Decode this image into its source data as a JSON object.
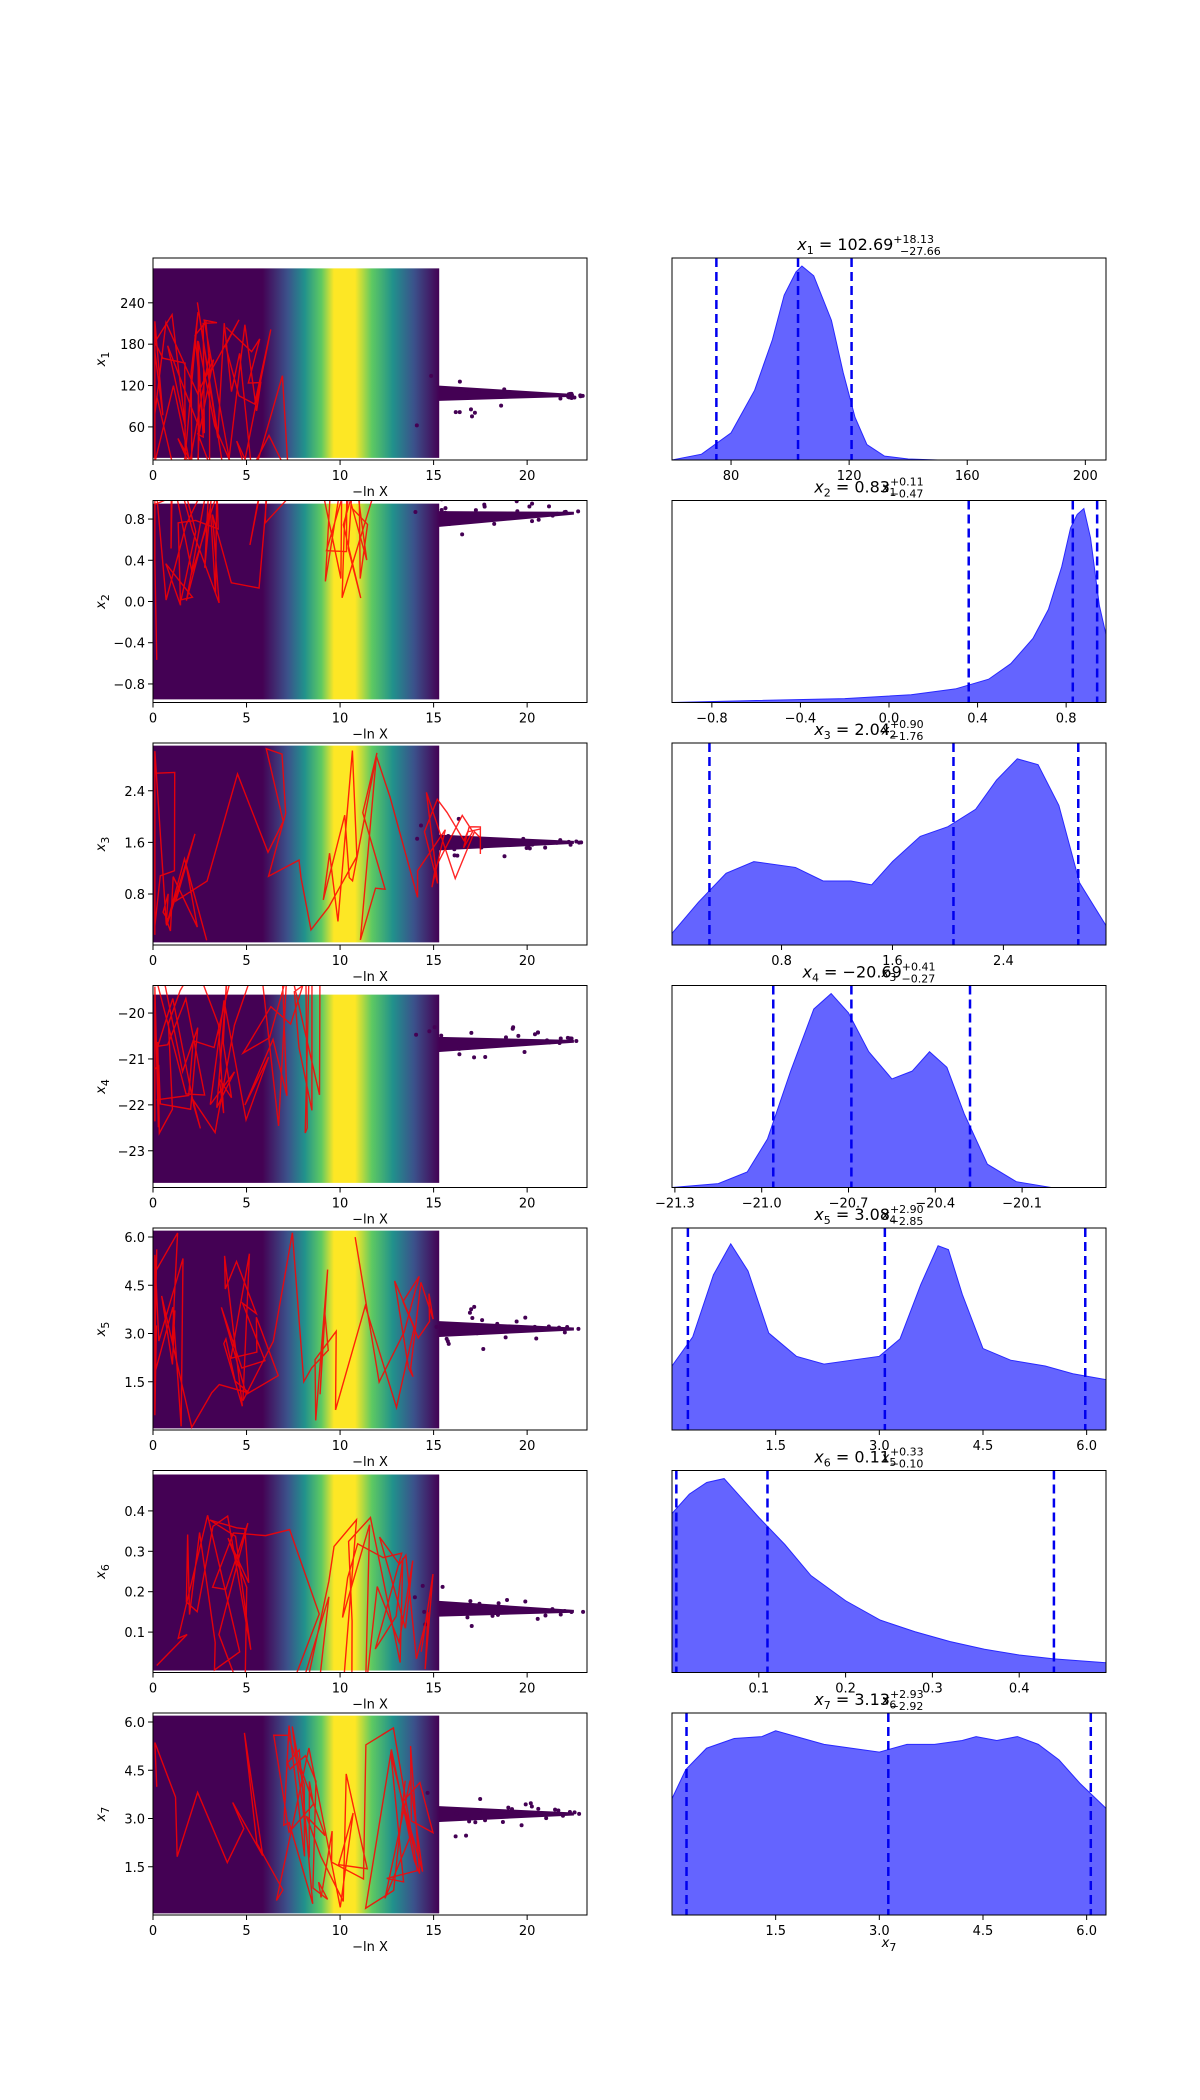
{
  "colors": {
    "posterior_fill": "#6464ff",
    "posterior_edge": "#2828ff",
    "quantile_line": "#0000ee",
    "trace_line": "#ff0000",
    "viridis": [
      "#440154",
      "#3b528b",
      "#21918c",
      "#5ec962",
      "#fde725"
    ]
  },
  "chart_data": {
    "type": "trace_plot",
    "trace_xlabel": "−ln X",
    "trace_xlim": [
      0,
      23.2
    ],
    "trace_xticks": [
      "0",
      "5",
      "10",
      "15",
      "20"
    ],
    "parameters": [
      {
        "label": "x",
        "index": "1",
        "title_value": "102.69",
        "err_plus": "+18.13",
        "err_minus": "−27.66",
        "trace_ylim": [
          12,
          305
        ],
        "trace_yticks": [
          "60",
          "120",
          "180",
          "240"
        ],
        "trace_core": 105,
        "trace_spread_low": 15,
        "trace_spread_high": 290,
        "posterior_xlim": [
          60,
          207
        ],
        "posterior_xticks": [
          "80",
          "120",
          "160",
          "200"
        ],
        "quantiles": [
          75.03,
          102.69,
          120.82
        ],
        "density_x": [
          60,
          70,
          80,
          88,
          94,
          98,
          102,
          104,
          108,
          114,
          118,
          122,
          126,
          132,
          140,
          150,
          207
        ],
        "density_y": [
          0.0,
          0.03,
          0.14,
          0.36,
          0.62,
          0.85,
          0.97,
          1.0,
          0.95,
          0.72,
          0.45,
          0.22,
          0.08,
          0.02,
          0.005,
          0.0,
          0.0
        ]
      },
      {
        "label": "x",
        "index": "2",
        "title_value": "0.83",
        "err_plus": "+0.11",
        "err_minus": "−0.47",
        "trace_ylim": [
          -0.98,
          0.98
        ],
        "trace_yticks": [
          "−0.8",
          "−0.4",
          "0.0",
          "0.4",
          "0.8"
        ],
        "trace_core": 0.87,
        "trace_spread_low": -0.95,
        "trace_spread_high": 0.95,
        "posterior_xlim": [
          -0.98,
          0.98
        ],
        "posterior_xticks": [
          "−0.8",
          "−0.4",
          "0.0",
          "0.4",
          "0.8"
        ],
        "quantiles": [
          0.36,
          0.83,
          0.94
        ],
        "density_x": [
          -0.98,
          -0.6,
          -0.2,
          0.1,
          0.3,
          0.45,
          0.55,
          0.65,
          0.72,
          0.78,
          0.82,
          0.85,
          0.88,
          0.91,
          0.95,
          0.98
        ],
        "density_y": [
          0.0,
          0.01,
          0.02,
          0.04,
          0.07,
          0.12,
          0.2,
          0.33,
          0.48,
          0.7,
          0.9,
          0.97,
          1.0,
          0.85,
          0.5,
          0.35
        ]
      },
      {
        "label": "x",
        "index": "3",
        "title_value": "2.04",
        "err_plus": "+0.90",
        "err_minus": "−1.76",
        "trace_ylim": [
          0.01,
          3.14
        ],
        "trace_yticks": [
          "0.8",
          "1.6",
          "2.4"
        ],
        "trace_core": 1.6,
        "trace_spread_low": 0.05,
        "trace_spread_high": 3.1,
        "posterior_xlim": [
          0.01,
          3.14
        ],
        "posterior_xticks": [
          "0.8",
          "1.6",
          "2.4"
        ],
        "quantiles": [
          0.28,
          2.04,
          2.94
        ],
        "density_x": [
          0.01,
          0.2,
          0.4,
          0.6,
          0.9,
          1.1,
          1.3,
          1.45,
          1.6,
          1.8,
          2.0,
          2.2,
          2.35,
          2.5,
          2.65,
          2.8,
          2.95,
          3.14
        ],
        "density_y": [
          0.06,
          0.22,
          0.37,
          0.43,
          0.4,
          0.33,
          0.33,
          0.31,
          0.43,
          0.56,
          0.61,
          0.7,
          0.85,
          0.96,
          0.93,
          0.72,
          0.32,
          0.1
        ]
      },
      {
        "label": "x",
        "index": "4",
        "title_value": "−20.69",
        "err_plus": "+0.41",
        "err_minus": "−0.27",
        "trace_ylim": [
          -23.8,
          -19.4
        ],
        "trace_yticks": [
          "−20",
          "−21",
          "−22",
          "−23"
        ],
        "trace_core": -20.6,
        "trace_spread_low": -23.7,
        "trace_spread_high": -19.6,
        "posterior_xlim": [
          -21.31,
          -19.81
        ],
        "posterior_xticks": [
          "−21.3",
          "−21.0",
          "−20.7",
          "−20.4",
          "−20.1"
        ],
        "quantiles": [
          -20.96,
          -20.69,
          -20.28
        ],
        "density_x": [
          -21.31,
          -21.15,
          -21.05,
          -20.98,
          -20.9,
          -20.82,
          -20.76,
          -20.7,
          -20.63,
          -20.55,
          -20.48,
          -20.42,
          -20.36,
          -20.3,
          -20.22,
          -20.12,
          -20.0,
          -19.81
        ],
        "density_y": [
          0.0,
          0.02,
          0.08,
          0.25,
          0.6,
          0.92,
          1.0,
          0.9,
          0.7,
          0.56,
          0.6,
          0.7,
          0.62,
          0.38,
          0.12,
          0.03,
          0.0,
          0.0
        ]
      },
      {
        "label": "x",
        "index": "5",
        "title_value": "3.08",
        "err_plus": "+2.90",
        "err_minus": "−2.85",
        "trace_ylim": [
          0,
          6.28
        ],
        "trace_yticks": [
          "1.5",
          "3.0",
          "4.5",
          "6.0"
        ],
        "trace_core": 3.14,
        "trace_spread_low": 0.05,
        "trace_spread_high": 6.2,
        "posterior_xlim": [
          0,
          6.28
        ],
        "posterior_xticks": [
          "1.5",
          "3.0",
          "4.5",
          "6.0"
        ],
        "quantiles": [
          0.23,
          3.08,
          5.98
        ],
        "density_x": [
          0,
          0.3,
          0.6,
          0.85,
          1.1,
          1.4,
          1.8,
          2.2,
          2.6,
          3.0,
          3.3,
          3.6,
          3.85,
          4.0,
          4.2,
          4.5,
          4.9,
          5.4,
          5.8,
          6.28
        ],
        "density_y": [
          0.33,
          0.48,
          0.8,
          0.96,
          0.82,
          0.5,
          0.38,
          0.34,
          0.36,
          0.38,
          0.47,
          0.75,
          0.95,
          0.93,
          0.7,
          0.42,
          0.36,
          0.33,
          0.29,
          0.26
        ]
      },
      {
        "label": "x",
        "index": "6",
        "title_value": "0.11",
        "err_plus": "+0.33",
        "err_minus": "−0.10",
        "trace_ylim": [
          0,
          0.5
        ],
        "trace_yticks": [
          "0.1",
          "0.2",
          "0.3",
          "0.4"
        ],
        "trace_core": 0.15,
        "trace_spread_low": 0.005,
        "trace_spread_high": 0.49,
        "posterior_xlim": [
          0,
          0.5
        ],
        "posterior_xticks": [
          "0.1",
          "0.2",
          "0.3",
          "0.4"
        ],
        "quantiles": [
          0.005,
          0.11,
          0.44
        ],
        "density_x": [
          0,
          0.02,
          0.04,
          0.06,
          0.08,
          0.1,
          0.13,
          0.16,
          0.2,
          0.24,
          0.28,
          0.32,
          0.36,
          0.4,
          0.44,
          0.5
        ],
        "density_y": [
          0.82,
          0.92,
          0.98,
          1.0,
          0.9,
          0.8,
          0.66,
          0.5,
          0.37,
          0.27,
          0.21,
          0.16,
          0.12,
          0.09,
          0.07,
          0.05
        ]
      },
      {
        "label": "x",
        "index": "7",
        "title_value": "3.13",
        "err_plus": "+2.93",
        "err_minus": "−2.92",
        "trace_ylim": [
          0,
          6.28
        ],
        "trace_yticks": [
          "1.5",
          "3.0",
          "4.5",
          "6.0"
        ],
        "trace_core": 3.14,
        "trace_spread_low": 0.05,
        "trace_spread_high": 6.2,
        "posterior_xlim": [
          0,
          6.28
        ],
        "posterior_xticks": [
          "1.5",
          "3.0",
          "4.5",
          "6.0"
        ],
        "quantiles": [
          0.21,
          3.13,
          6.06
        ],
        "density_x": [
          0,
          0.2,
          0.5,
          0.9,
          1.3,
          1.5,
          1.8,
          2.2,
          2.6,
          3.0,
          3.4,
          3.8,
          4.2,
          4.4,
          4.7,
          5.0,
          5.3,
          5.6,
          5.9,
          6.28
        ],
        "density_y": [
          0.6,
          0.75,
          0.86,
          0.91,
          0.92,
          0.95,
          0.92,
          0.88,
          0.86,
          0.84,
          0.88,
          0.88,
          0.9,
          0.92,
          0.9,
          0.92,
          0.88,
          0.8,
          0.68,
          0.55
        ]
      }
    ]
  }
}
